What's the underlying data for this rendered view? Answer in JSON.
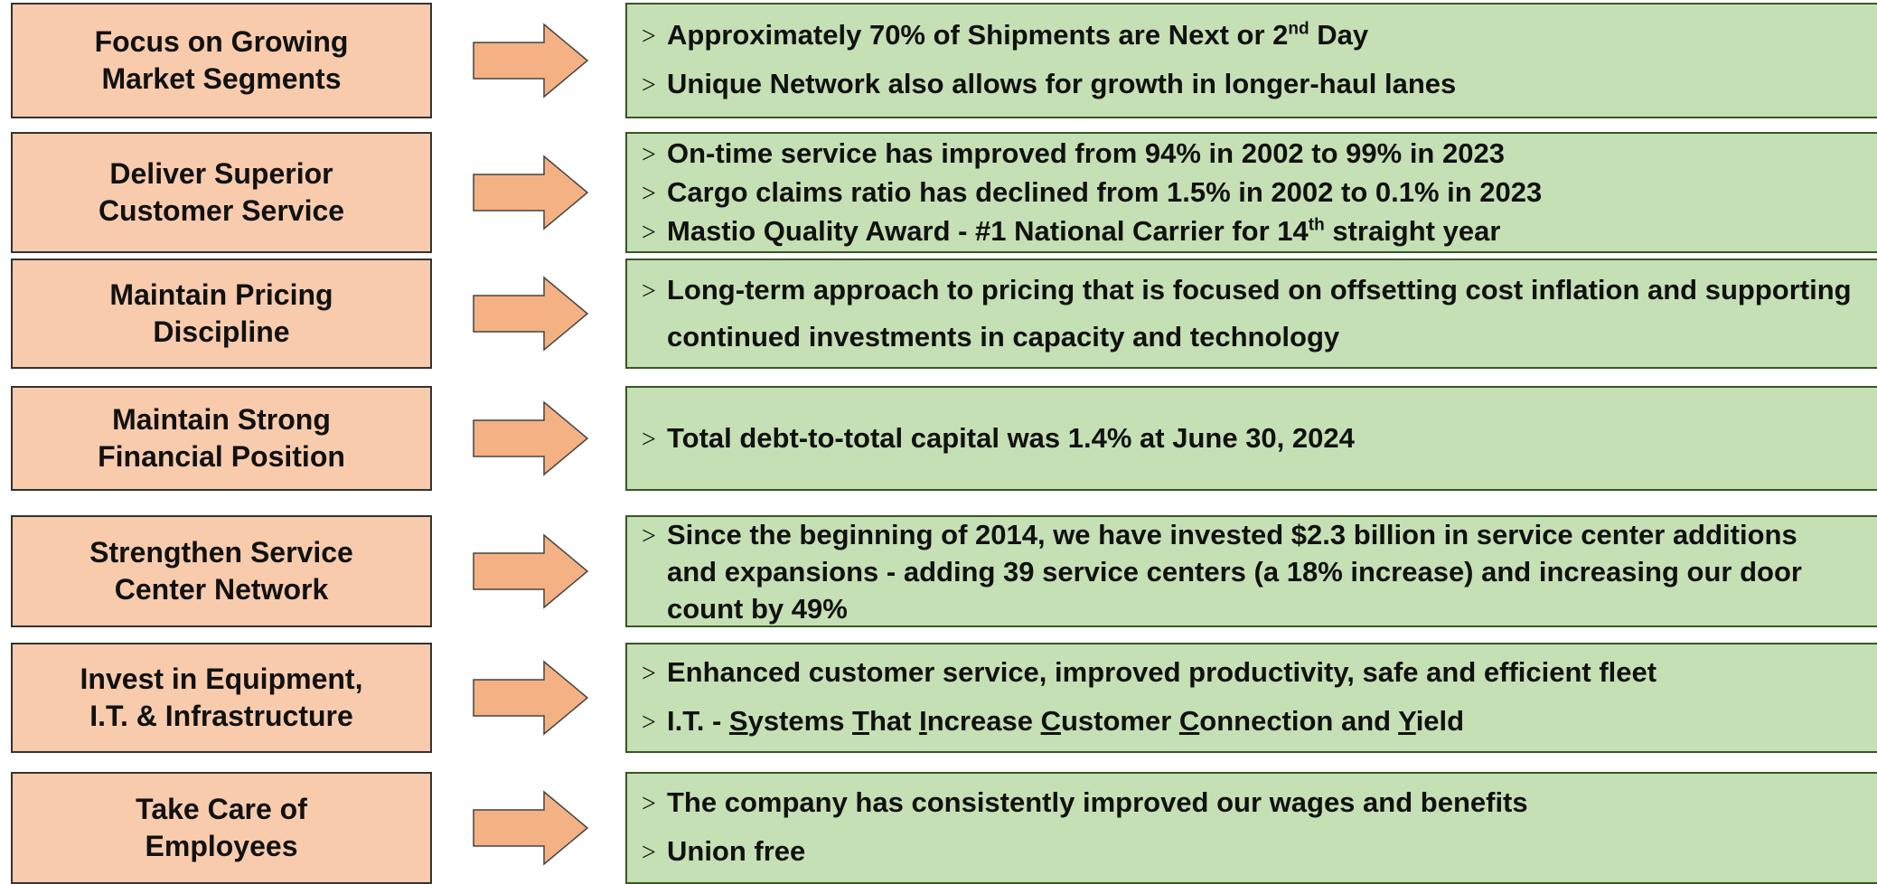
{
  "bullet_symbol": ">",
  "rows": [
    {
      "label": [
        "Focus on Growing",
        "Market Segments"
      ],
      "bullets": [
        [
          "Approximately 70% of Shipments are Next or 2",
          {
            "text": "nd",
            "sup": true
          },
          " Day"
        ],
        [
          "Unique Network also allows for growth in longer-haul lanes"
        ]
      ]
    },
    {
      "label": [
        "Deliver Superior",
        "Customer Service"
      ],
      "bullets": [
        [
          "On-time service has improved from 94% in 2002 to 99% in 2023"
        ],
        [
          "Cargo claims ratio has declined from 1.5% in 2002 to 0.1% in 2023"
        ],
        [
          "Mastio Quality Award - #1 National Carrier for 14",
          {
            "text": "th",
            "sup": true
          },
          " straight year"
        ]
      ]
    },
    {
      "label": [
        "Maintain Pricing",
        "Discipline"
      ],
      "bullets": [
        [
          "Long-term approach to pricing that is focused on offsetting cost inflation and supporting continued investments in capacity and technology"
        ]
      ]
    },
    {
      "label": [
        "Maintain Strong",
        "Financial Position"
      ],
      "bullets": [
        [
          "Total debt-to-total capital was 1.4% at June 30, 2024"
        ]
      ]
    },
    {
      "label": [
        "Strengthen Service",
        "Center Network"
      ],
      "bullets": [
        [
          "Since the beginning of 2014, we have invested $2.3 billion in service center additions and expansions - adding 39 service centers (a 18% increase) and increasing our door count by 49%"
        ]
      ]
    },
    {
      "label": [
        "Invest in Equipment,",
        "I.T. & Infrastructure"
      ],
      "bullets": [
        [
          "Enhanced customer service, improved productivity, safe and efficient fleet"
        ],
        [
          "I.T. - ",
          {
            "text": "S",
            "u": true
          },
          "ystems ",
          {
            "text": "T",
            "u": true
          },
          "hat ",
          {
            "text": "I",
            "u": true
          },
          "ncrease ",
          {
            "text": "C",
            "u": true
          },
          "ustomer ",
          {
            "text": "C",
            "u": true
          },
          "onnection and ",
          {
            "text": "Y",
            "u": true
          },
          "ield"
        ]
      ]
    },
    {
      "label": [
        "Take Care of",
        "Employees"
      ],
      "bullets": [
        [
          "The company has consistently improved our wages and benefits"
        ],
        [
          "Union free"
        ]
      ]
    }
  ]
}
